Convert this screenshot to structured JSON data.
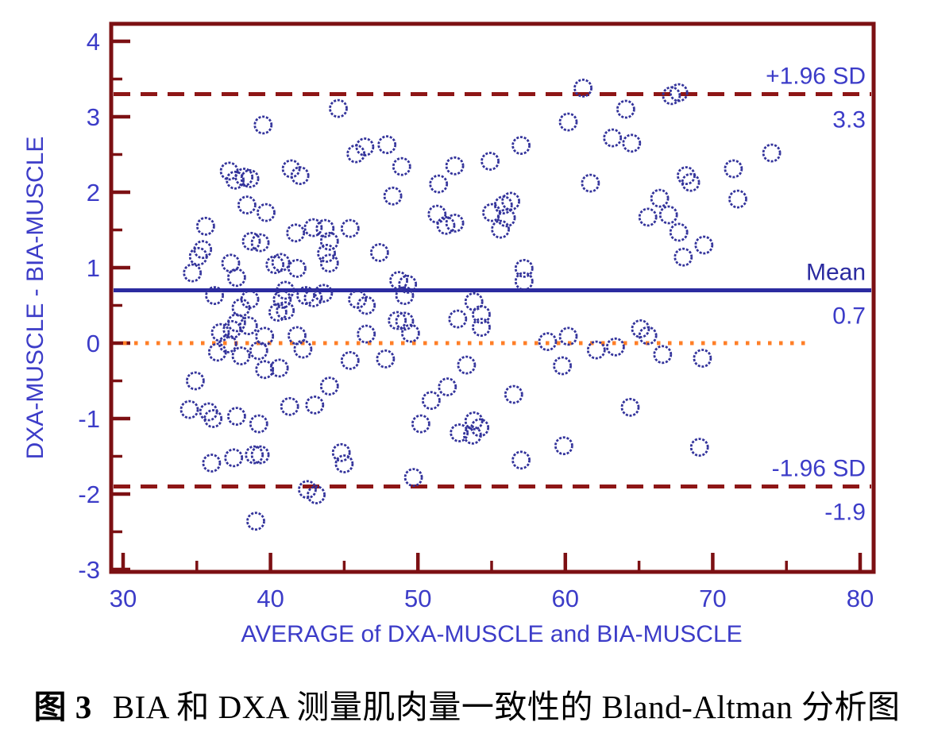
{
  "figure": {
    "caption_label": "图 3",
    "caption_text": "BIA 和 DXA 测量肌肉量一致性的 Bland-Altman 分析图"
  },
  "colors": {
    "frame_maroon": "#7C1013",
    "refline_maroon": "#8E1616",
    "navy": "#2B2BA0",
    "point_navy": "#33339B",
    "label_blue": "#3C3CC8",
    "zero_orange": "#FF7F27",
    "background": "#FFFFFF",
    "caption_black": "#000000"
  },
  "chart_data": {
    "type": "scatter",
    "title": "",
    "xlabel": "AVERAGE of DXA-MUSCLE and BIA-MUSCLE",
    "ylabel": "DXA-MUSCLE - BIA-MUSCLE",
    "xlim": [
      29.2,
      80.9
    ],
    "ylim": [
      -3.05,
      4.25
    ],
    "x_ticks": [
      30,
      40,
      50,
      60,
      70,
      80
    ],
    "x_minor_ticks": [
      35,
      45,
      55,
      65,
      75
    ],
    "y_ticks": [
      4,
      3,
      2,
      1,
      0,
      -1,
      -2,
      -3
    ],
    "y_minor_ticks": [
      3.5,
      2.5,
      1.5,
      0.5,
      -0.5,
      -1.5,
      -2.5
    ],
    "grid": false,
    "legend": "none",
    "reference_lines": [
      {
        "id": "upper_loa",
        "label": "+1.96 SD",
        "value_label": "3.3",
        "y": 3.3,
        "style": "dashed",
        "color": "refline_maroon"
      },
      {
        "id": "mean",
        "label": "Mean",
        "value_label": "0.7",
        "y": 0.7,
        "style": "solid",
        "color": "navy"
      },
      {
        "id": "zero",
        "label": "",
        "value_label": "",
        "y": 0.0,
        "style": "dotted",
        "color": "zero_orange",
        "x_end": 76.3
      },
      {
        "id": "lower_loa",
        "label": "-1.96 SD",
        "value_label": "-1.9",
        "y": -1.9,
        "style": "dashed",
        "color": "refline_maroon"
      }
    ],
    "points": [
      [
        61.2,
        3.38
      ],
      [
        67.2,
        3.28
      ],
      [
        67.7,
        3.32
      ],
      [
        44.6,
        3.11
      ],
      [
        64.1,
        3.1
      ],
      [
        60.2,
        2.93
      ],
      [
        39.5,
        2.89
      ],
      [
        63.2,
        2.72
      ],
      [
        64.5,
        2.65
      ],
      [
        47.9,
        2.63
      ],
      [
        57.0,
        2.62
      ],
      [
        46.4,
        2.6
      ],
      [
        45.8,
        2.51
      ],
      [
        74.0,
        2.52
      ],
      [
        54.9,
        2.41
      ],
      [
        52.5,
        2.35
      ],
      [
        48.9,
        2.34
      ],
      [
        41.4,
        2.31
      ],
      [
        71.4,
        2.31
      ],
      [
        37.2,
        2.28
      ],
      [
        42.0,
        2.22
      ],
      [
        68.2,
        2.22
      ],
      [
        38.2,
        2.2
      ],
      [
        38.6,
        2.18
      ],
      [
        37.6,
        2.16
      ],
      [
        68.5,
        2.13
      ],
      [
        61.7,
        2.12
      ],
      [
        51.4,
        2.11
      ],
      [
        48.3,
        1.95
      ],
      [
        66.4,
        1.92
      ],
      [
        71.7,
        1.91
      ],
      [
        56.3,
        1.88
      ],
      [
        55.8,
        1.83
      ],
      [
        38.4,
        1.83
      ],
      [
        39.7,
        1.73
      ],
      [
        55.0,
        1.73
      ],
      [
        51.3,
        1.71
      ],
      [
        67.0,
        1.7
      ],
      [
        65.6,
        1.67
      ],
      [
        56.0,
        1.66
      ],
      [
        52.5,
        1.59
      ],
      [
        51.9,
        1.56
      ],
      [
        35.6,
        1.55
      ],
      [
        42.9,
        1.53
      ],
      [
        43.7,
        1.52
      ],
      [
        45.4,
        1.52
      ],
      [
        55.6,
        1.51
      ],
      [
        67.7,
        1.47
      ],
      [
        41.7,
        1.46
      ],
      [
        44.0,
        1.35
      ],
      [
        38.7,
        1.35
      ],
      [
        39.3,
        1.33
      ],
      [
        69.4,
        1.3
      ],
      [
        35.4,
        1.24
      ],
      [
        47.4,
        1.2
      ],
      [
        43.8,
        1.19
      ],
      [
        35.1,
        1.15
      ],
      [
        68.0,
        1.14
      ],
      [
        37.3,
        1.06
      ],
      [
        44.0,
        1.06
      ],
      [
        40.7,
        1.07
      ],
      [
        40.3,
        1.04
      ],
      [
        57.2,
        0.99
      ],
      [
        41.8,
        0.99
      ],
      [
        34.7,
        0.93
      ],
      [
        37.7,
        0.87
      ],
      [
        48.7,
        0.83
      ],
      [
        57.2,
        0.82
      ],
      [
        49.3,
        0.78
      ],
      [
        41.0,
        0.7
      ],
      [
        36.2,
        0.63
      ],
      [
        49.1,
        0.63
      ],
      [
        42.4,
        0.63
      ],
      [
        43.6,
        0.66
      ],
      [
        42.9,
        0.6
      ],
      [
        38.6,
        0.58
      ],
      [
        40.8,
        0.58
      ],
      [
        45.9,
        0.58
      ],
      [
        53.8,
        0.55
      ],
      [
        46.5,
        0.5
      ],
      [
        38.0,
        0.47
      ],
      [
        40.5,
        0.41
      ],
      [
        41.0,
        0.43
      ],
      [
        54.3,
        0.38
      ],
      [
        52.7,
        0.32
      ],
      [
        48.6,
        0.3
      ],
      [
        49.1,
        0.29
      ],
      [
        37.7,
        0.27
      ],
      [
        38.5,
        0.23
      ],
      [
        54.3,
        0.21
      ],
      [
        65.1,
        0.19
      ],
      [
        37.4,
        0.18
      ],
      [
        36.6,
        0.14
      ],
      [
        49.5,
        0.13
      ],
      [
        46.5,
        0.12
      ],
      [
        65.6,
        0.1
      ],
      [
        60.2,
        0.09
      ],
      [
        39.6,
        0.09
      ],
      [
        41.8,
        0.1
      ],
      [
        58.8,
        0.02
      ],
      [
        37.1,
        -0.01
      ],
      [
        63.4,
        -0.05
      ],
      [
        42.2,
        -0.08
      ],
      [
        62.1,
        -0.09
      ],
      [
        39.2,
        -0.1
      ],
      [
        36.4,
        -0.12
      ],
      [
        66.6,
        -0.15
      ],
      [
        38.0,
        -0.17
      ],
      [
        69.3,
        -0.2
      ],
      [
        47.8,
        -0.21
      ],
      [
        45.4,
        -0.23
      ],
      [
        53.3,
        -0.29
      ],
      [
        59.8,
        -0.3
      ],
      [
        40.6,
        -0.33
      ],
      [
        39.6,
        -0.35
      ],
      [
        34.9,
        -0.5
      ],
      [
        44.0,
        -0.57
      ],
      [
        52.0,
        -0.58
      ],
      [
        56.5,
        -0.68
      ],
      [
        50.9,
        -0.76
      ],
      [
        43.0,
        -0.82
      ],
      [
        41.3,
        -0.84
      ],
      [
        64.4,
        -0.85
      ],
      [
        34.5,
        -0.88
      ],
      [
        35.8,
        -0.91
      ],
      [
        37.7,
        -0.97
      ],
      [
        36.1,
        -1.0
      ],
      [
        53.8,
        -1.03
      ],
      [
        50.2,
        -1.07
      ],
      [
        39.2,
        -1.07
      ],
      [
        54.2,
        -1.12
      ],
      [
        52.8,
        -1.19
      ],
      [
        53.7,
        -1.22
      ],
      [
        59.9,
        -1.36
      ],
      [
        69.1,
        -1.38
      ],
      [
        44.8,
        -1.45
      ],
      [
        38.9,
        -1.48
      ],
      [
        39.3,
        -1.48
      ],
      [
        37.5,
        -1.52
      ],
      [
        57.0,
        -1.55
      ],
      [
        36.0,
        -1.59
      ],
      [
        45.0,
        -1.6
      ],
      [
        49.7,
        -1.78
      ],
      [
        42.5,
        -1.94
      ],
      [
        43.1,
        -2.01
      ],
      [
        39.0,
        -2.36
      ]
    ]
  }
}
